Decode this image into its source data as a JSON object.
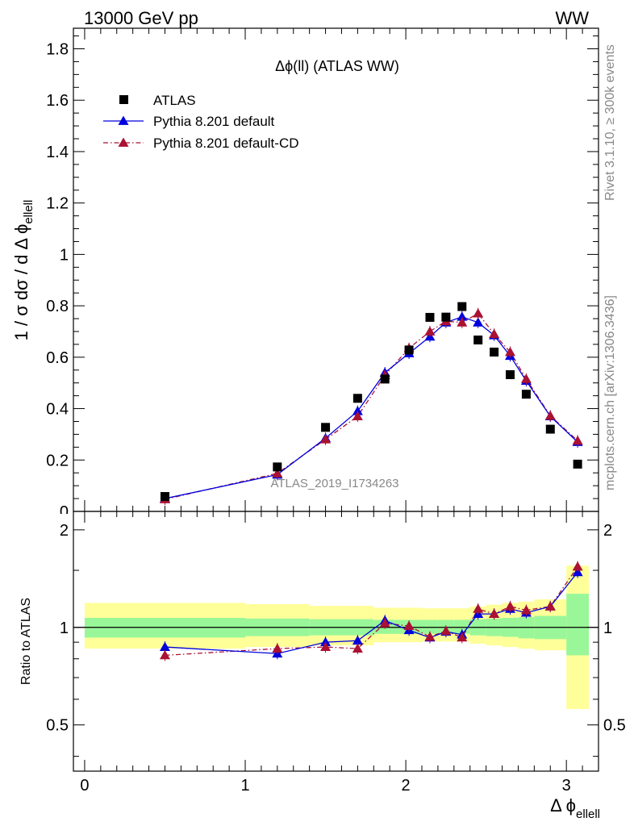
{
  "header": {
    "left": "13000 GeV pp",
    "right": "WW",
    "side_top": "Rivet 3.1.10, ≥ 300k events",
    "side_bottom": "mcplots.cern.ch [arXiv:1306.3436]"
  },
  "colors": {
    "atlas": "#000000",
    "default": "#0000dd",
    "default_cd": "#aa1133",
    "band_inner": "#99f799",
    "band_outer": "#ffff99"
  },
  "chart_data": [
    {
      "type": "scatter",
      "panel": "main",
      "title": "Δϕ(ll) (ATLAS WW)",
      "watermark": "ATLAS_2019_I1734263",
      "ylabel": "1 / σ  dσ / d Δ ϕ",
      "ylabel_sub": "ellell",
      "xlim": [
        -0.07,
        3.2
      ],
      "ylim": [
        0,
        1.88
      ],
      "yticks": [
        0.2,
        0.4,
        0.6,
        0.8,
        1,
        1.2,
        1.4,
        1.6,
        1.8
      ],
      "ytick_labels": [
        "0.2",
        "0.4",
        "0.6",
        "0.8",
        "1",
        "1.2",
        "1.4",
        "1.6",
        "1.8"
      ],
      "bottom_tick_label": "0",
      "legend_position": "top-left",
      "series": [
        {
          "name": "ATLAS",
          "style": "square",
          "x": [
            0.5,
            1.2,
            1.5,
            1.7,
            1.87,
            2.02,
            2.15,
            2.25,
            2.35,
            2.45,
            2.55,
            2.65,
            2.75,
            2.9,
            3.07
          ],
          "values": [
            0.058,
            0.173,
            0.327,
            0.44,
            0.515,
            0.628,
            0.755,
            0.756,
            0.797,
            0.667,
            0.62,
            0.532,
            0.456,
            0.32,
            0.184
          ]
        },
        {
          "name": "Pythia 8.201 default",
          "style": "solid-triangle",
          "x": [
            0.5,
            1.2,
            1.5,
            1.7,
            1.87,
            2.02,
            2.15,
            2.25,
            2.35,
            2.45,
            2.55,
            2.65,
            2.75,
            2.9,
            3.07
          ],
          "values": [
            0.05,
            0.143,
            0.285,
            0.39,
            0.54,
            0.615,
            0.68,
            0.735,
            0.757,
            0.735,
            0.685,
            0.605,
            0.508,
            0.37,
            0.27
          ]
        },
        {
          "name": "Pythia 8.201 default-CD",
          "style": "dashdot-triangle",
          "x": [
            0.5,
            1.2,
            1.5,
            1.7,
            1.87,
            2.02,
            2.15,
            2.25,
            2.35,
            2.45,
            2.55,
            2.65,
            2.75,
            2.9,
            3.07
          ],
          "values": [
            0.047,
            0.148,
            0.28,
            0.37,
            0.53,
            0.635,
            0.7,
            0.74,
            0.735,
            0.77,
            0.69,
            0.62,
            0.515,
            0.372,
            0.275
          ]
        }
      ]
    },
    {
      "type": "line",
      "panel": "ratio",
      "ylabel": "Ratio to ATLAS",
      "xlabel": "Δ ϕ",
      "xlabel_sub": "ellell",
      "xlim": [
        -0.07,
        3.2
      ],
      "ylim": [
        0.36,
        2.28
      ],
      "yscale": "log",
      "yticks": [
        0.5,
        1,
        2
      ],
      "ytick_labels": [
        "0.5",
        "1",
        "2"
      ],
      "xticks": [
        0,
        1,
        2,
        3
      ],
      "xtick_labels": [
        "0",
        "1",
        "2",
        "3"
      ],
      "bands": {
        "edges": [
          0,
          1,
          1.4,
          1.8,
          2.1,
          2.2,
          2.3,
          2.4,
          2.5,
          2.6,
          2.7,
          2.8,
          3.0,
          3.14
        ],
        "inner_lo": [
          0.93,
          0.94,
          0.945,
          0.955,
          0.955,
          0.955,
          0.955,
          0.945,
          0.94,
          0.935,
          0.925,
          0.92,
          0.82
        ],
        "inner_hi": [
          1.07,
          1.065,
          1.06,
          1.055,
          1.055,
          1.055,
          1.055,
          1.06,
          1.065,
          1.07,
          1.075,
          1.085,
          1.27
        ],
        "outer_lo": [
          0.86,
          0.87,
          0.88,
          0.9,
          0.905,
          0.905,
          0.905,
          0.89,
          0.88,
          0.87,
          0.86,
          0.85,
          0.56
        ],
        "outer_hi": [
          1.19,
          1.18,
          1.165,
          1.15,
          1.145,
          1.145,
          1.145,
          1.16,
          1.175,
          1.19,
          1.2,
          1.22,
          1.55
        ]
      },
      "series": [
        {
          "name": "Pythia 8.201 default",
          "x": [
            0.5,
            1.2,
            1.5,
            1.7,
            1.87,
            2.02,
            2.15,
            2.25,
            2.35,
            2.45,
            2.55,
            2.65,
            2.75,
            2.9,
            3.07
          ],
          "values": [
            0.87,
            0.83,
            0.9,
            0.91,
            1.05,
            0.98,
            0.93,
            0.97,
            0.95,
            1.1,
            1.1,
            1.14,
            1.11,
            1.16,
            1.48
          ]
        },
        {
          "name": "Pythia 8.201 default-CD",
          "x": [
            0.5,
            1.2,
            1.5,
            1.7,
            1.87,
            2.02,
            2.15,
            2.25,
            2.35,
            2.45,
            2.55,
            2.65,
            2.75,
            2.9,
            3.07
          ],
          "values": [
            0.82,
            0.86,
            0.87,
            0.86,
            1.03,
            1.01,
            0.935,
            0.975,
            0.93,
            1.14,
            1.1,
            1.16,
            1.13,
            1.16,
            1.54
          ]
        }
      ]
    }
  ]
}
